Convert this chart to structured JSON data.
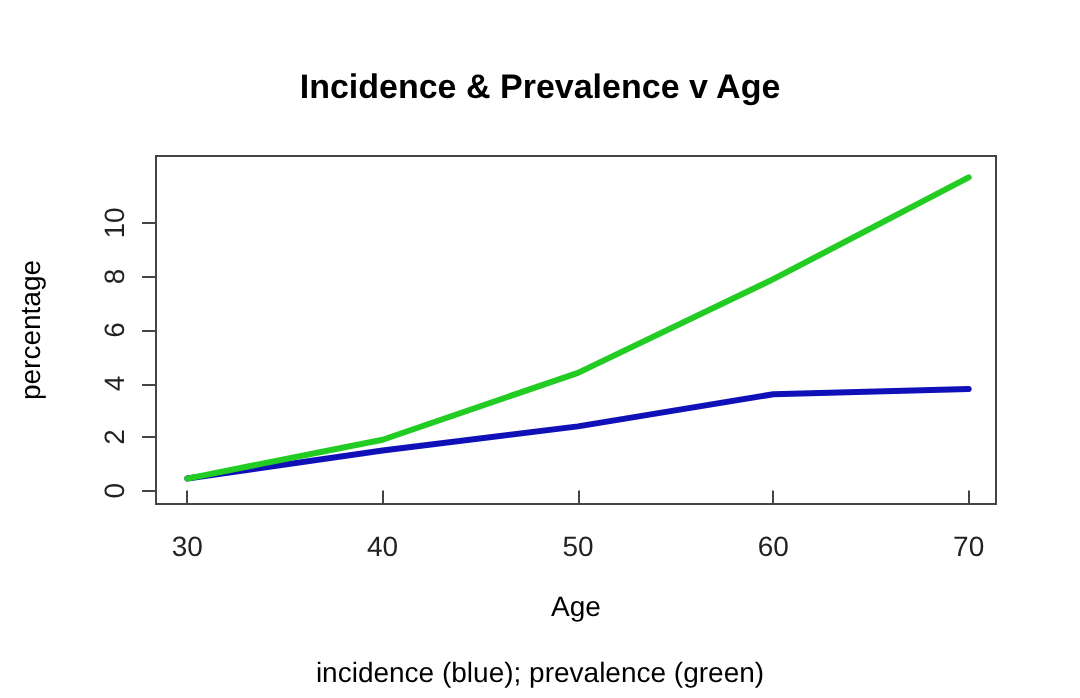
{
  "chart_data": {
    "type": "line",
    "title": "Incidence & Prevalence v Age",
    "xlabel": "Age",
    "ylabel": "percentage",
    "annotations": [
      "incidence (blue); prevalence (green)"
    ],
    "x": [
      30,
      40,
      50,
      60,
      70
    ],
    "series": [
      {
        "color": "#1010b8",
        "values": [
          0.45,
          1.5,
          2.4,
          3.6,
          3.8
        ]
      },
      {
        "color": "#22cc22",
        "values": [
          0.45,
          1.9,
          4.4,
          7.9,
          11.7
        ]
      }
    ],
    "xlim": [
      28.4,
      71.4
    ],
    "ylim": [
      -0.5,
      12.5
    ],
    "xticks": [
      30,
      40,
      50,
      60,
      70
    ],
    "yticks": [
      0,
      2,
      4,
      6,
      8,
      10
    ],
    "marker": "none",
    "line_style": "solid"
  }
}
